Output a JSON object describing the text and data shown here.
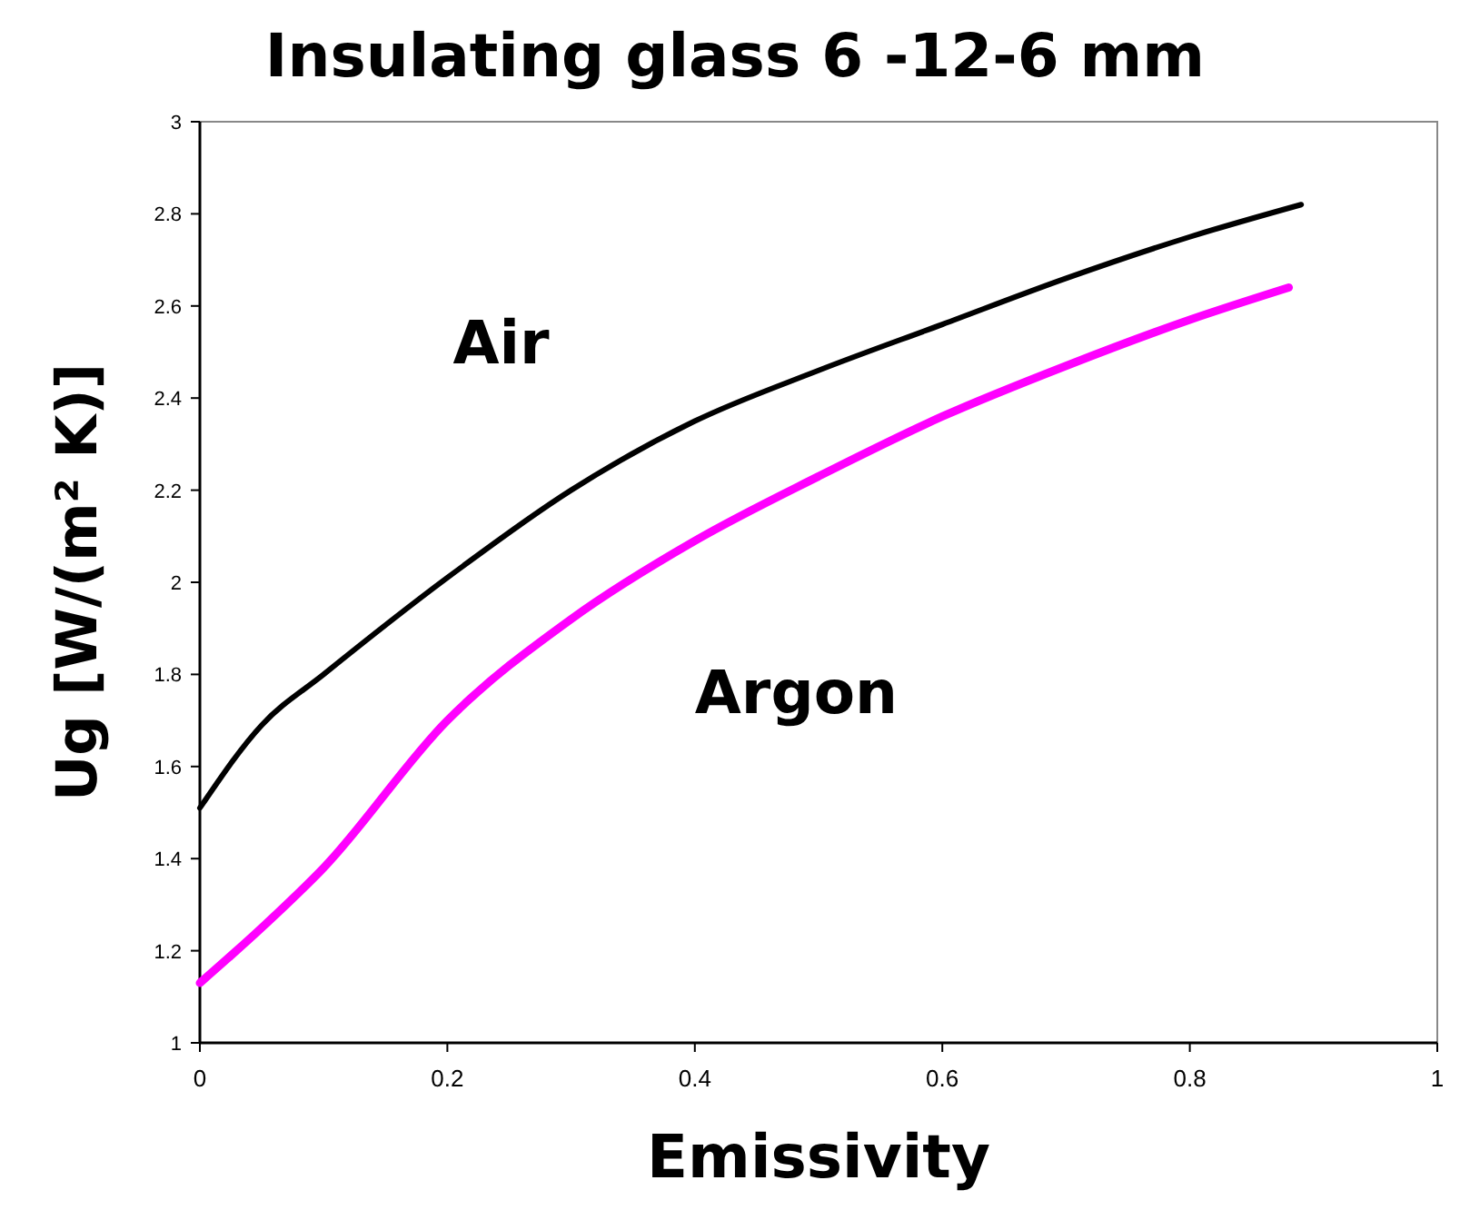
{
  "chart_data": {
    "type": "line",
    "title": "Insulating  glass  6 -12-6 mm",
    "xlabel": "Emissivity",
    "ylabel": "Ug [W/(m² K)]",
    "xlim": [
      0,
      1
    ],
    "xticks": [
      0,
      0.2,
      0.4,
      0.6,
      0.8,
      1
    ],
    "ylim": [
      1,
      3
    ],
    "yticks": [
      1,
      1.2,
      1.4,
      1.6,
      1.8,
      2,
      2.2,
      2.4,
      2.6,
      2.8,
      3
    ],
    "grid": false,
    "line_style": "solid",
    "series": [
      {
        "name": "Air",
        "color": "#000000",
        "x": [
          0,
          0.05,
          0.1,
          0.2,
          0.3,
          0.4,
          0.5,
          0.6,
          0.7,
          0.8,
          0.89
        ],
        "values": [
          1.51,
          1.69,
          1.8,
          2.01,
          2.2,
          2.35,
          2.46,
          2.56,
          2.66,
          2.75,
          2.82
        ]
      },
      {
        "name": "Argon",
        "color": "#ff00ff",
        "x": [
          0,
          0.05,
          0.1,
          0.2,
          0.3,
          0.4,
          0.5,
          0.6,
          0.7,
          0.8,
          0.88
        ],
        "values": [
          1.13,
          1.25,
          1.38,
          1.7,
          1.92,
          2.09,
          2.23,
          2.36,
          2.47,
          2.57,
          2.64
        ]
      }
    ]
  }
}
